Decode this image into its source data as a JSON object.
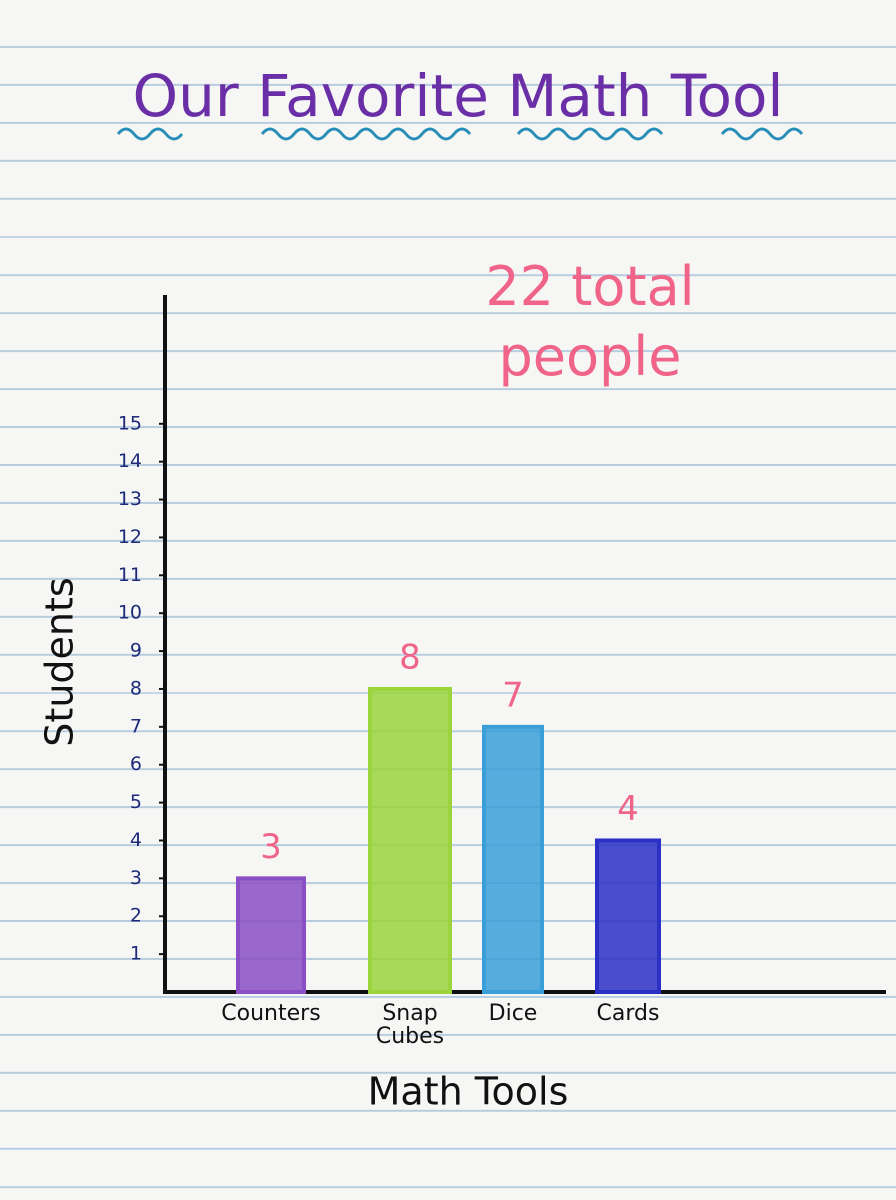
{
  "chart_data": {
    "type": "bar",
    "title": "Our Favorite Math Tool",
    "annotation": "22 total people",
    "y_label": "Students",
    "x_label": "Math Tools",
    "categories": [
      "Counters",
      "Snap Cubes",
      "Dice",
      "Cards"
    ],
    "values": [
      3,
      8,
      7,
      4
    ],
    "colors": [
      "#8a4fc4",
      "#9bd43c",
      "#3a9fd8",
      "#2b30c6"
    ],
    "ylim": [
      0,
      18.4
    ],
    "yticks": [
      1,
      2,
      3,
      4,
      5,
      6,
      7,
      8,
      9,
      10,
      11,
      12,
      13,
      14,
      15
    ],
    "grid": false
  }
}
